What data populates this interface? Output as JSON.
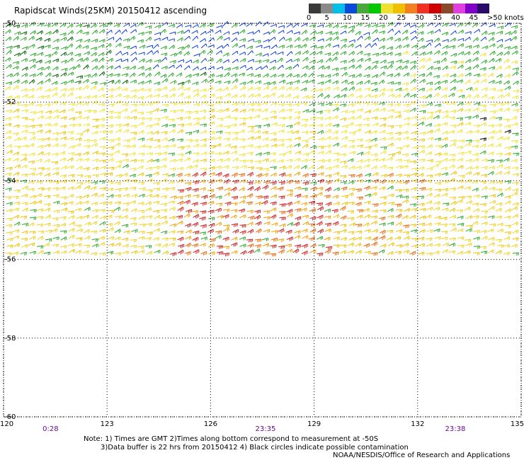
{
  "title": "Rapidscat Winds(25KM) 20150412 ascending",
  "colorbar": {
    "colors": [
      "#3a3a3a",
      "#8a8a8a",
      "#00bfe8",
      "#0a4ad8",
      "#4aa83a",
      "#00c800",
      "#f0e030",
      "#f0c000",
      "#f08020",
      "#f03020",
      "#d00000",
      "#8a4a2a",
      "#e040e0",
      "#8000c8",
      "#2a0a6a"
    ],
    "labels": [
      "0",
      "5",
      "10",
      "15",
      "20",
      "25",
      "30",
      "35",
      "40",
      "45",
      ">50 knots"
    ]
  },
  "map": {
    "lon_min": 120,
    "lon_max": 135,
    "lat_min": -60,
    "lat_max": -50,
    "x_ticks": [
      "120",
      "123",
      "126",
      "129",
      "132",
      "135"
    ],
    "y_ticks": [
      "-50",
      "-52",
      "-54",
      "-56",
      "-58",
      "-60"
    ],
    "pass_times": [
      "0:28",
      "23:35",
      "23:38"
    ]
  },
  "notes": {
    "line1": "Note: 1) Times are GMT 2)Times along bottom correspond to measurement at -50S",
    "line2": "3)Data buffer is 22 hrs from 20150412 4) Black circles indicate possible contamination",
    "credit": "NOAA/NESDIS/Office of Research and Applications"
  }
}
